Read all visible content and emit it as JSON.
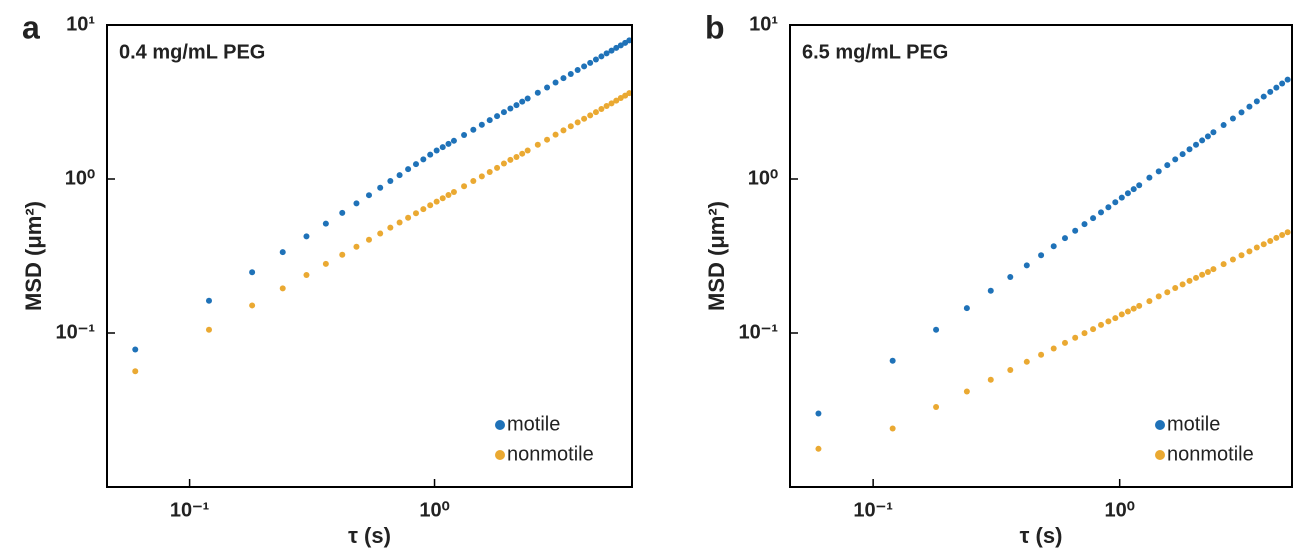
{
  "chart_data": [
    {
      "type": "scatter",
      "panel_label": "a",
      "annotation": "0.4 mg/mL PEG",
      "xlabel": "τ (s)",
      "ylabel": "MSD (μm²)",
      "xscale": "log",
      "yscale": "log",
      "legend": "lower right",
      "xlim": [
        0.046,
        6.4
      ],
      "ylim": [
        0.01,
        10
      ],
      "xticks": [
        {
          "value": 0.1,
          "label": "10⁻¹"
        },
        {
          "value": 1,
          "label": "10⁰"
        }
      ],
      "yticks": [
        {
          "value": 0.1,
          "label": "10⁻¹"
        },
        {
          "value": 1,
          "label": "10⁰"
        },
        {
          "value": 10,
          "label": "10¹"
        }
      ],
      "x": [
        0.06,
        0.12,
        0.18,
        0.24,
        0.3,
        0.36,
        0.42,
        0.48,
        0.54,
        0.6,
        0.66,
        0.72,
        0.78,
        0.84,
        0.9,
        0.96,
        1.02,
        1.08,
        1.14,
        1.2,
        1.32,
        1.44,
        1.56,
        1.68,
        1.8,
        1.92,
        2.04,
        2.16,
        2.28,
        2.4,
        2.64,
        2.88,
        3.12,
        3.36,
        3.6,
        3.84,
        4.08,
        4.32,
        4.56,
        4.8,
        5.04,
        5.28,
        5.52,
        5.76,
        6,
        6.24
      ],
      "series": [
        {
          "name": "motile",
          "color": "#1f72b8",
          "values": [
            0.0782,
            0.162,
            0.248,
            0.335,
            0.424,
            0.513,
            0.603,
            0.694,
            0.785,
            0.877,
            0.97,
            1.06,
            1.16,
            1.25,
            1.34,
            1.44,
            1.53,
            1.61,
            1.69,
            1.77,
            1.93,
            2.09,
            2.25,
            2.41,
            2.56,
            2.72,
            2.87,
            3.02,
            3.18,
            3.33,
            3.63,
            3.93,
            4.23,
            4.52,
            4.81,
            5.1,
            5.39,
            5.68,
            5.97,
            6.25,
            6.54,
            6.82,
            7.1,
            7.38,
            7.66,
            7.94
          ]
        },
        {
          "name": "nonmotile",
          "color": "#eaa932",
          "values": [
            0.0564,
            0.105,
            0.151,
            0.195,
            0.238,
            0.281,
            0.322,
            0.363,
            0.403,
            0.443,
            0.483,
            0.522,
            0.56,
            0.599,
            0.637,
            0.675,
            0.713,
            0.75,
            0.787,
            0.824,
            0.897,
            0.97,
            1.04,
            1.11,
            1.18,
            1.26,
            1.33,
            1.39,
            1.46,
            1.53,
            1.67,
            1.8,
            1.94,
            2.07,
            2.2,
            2.33,
            2.46,
            2.59,
            2.72,
            2.85,
            2.98,
            3.1,
            3.23,
            3.36,
            3.48,
            3.61
          ]
        }
      ]
    },
    {
      "type": "scatter",
      "panel_label": "b",
      "annotation": "6.5 mg/mL PEG",
      "xlabel": "τ (s)",
      "ylabel": "MSD (μm²)",
      "xscale": "log",
      "yscale": "log",
      "legend": "lower right",
      "xlim": [
        0.046,
        5.0
      ],
      "ylim": [
        0.01,
        10
      ],
      "xticks": [
        {
          "value": 0.1,
          "label": "10⁻¹"
        },
        {
          "value": 1,
          "label": "10⁰"
        }
      ],
      "yticks": [
        {
          "value": 0.1,
          "label": "10⁻¹"
        },
        {
          "value": 1,
          "label": "10⁰"
        },
        {
          "value": 10,
          "label": "10¹"
        }
      ],
      "x": [
        0.06,
        0.12,
        0.18,
        0.24,
        0.3,
        0.36,
        0.42,
        0.48,
        0.54,
        0.6,
        0.66,
        0.72,
        0.78,
        0.84,
        0.9,
        0.96,
        1.02,
        1.08,
        1.14,
        1.2,
        1.32,
        1.44,
        1.56,
        1.68,
        1.8,
        1.92,
        2.04,
        2.16,
        2.28,
        2.4,
        2.64,
        2.88,
        3.12,
        3.36,
        3.6,
        3.84,
        4.08,
        4.32,
        4.56,
        4.8
      ],
      "series": [
        {
          "name": "motile",
          "color": "#1f72b8",
          "values": [
            0.03,
            0.066,
            0.105,
            0.145,
            0.188,
            0.231,
            0.275,
            0.32,
            0.366,
            0.413,
            0.461,
            0.509,
            0.557,
            0.607,
            0.656,
            0.706,
            0.757,
            0.808,
            0.859,
            0.911,
            1.02,
            1.12,
            1.23,
            1.34,
            1.45,
            1.56,
            1.67,
            1.78,
            1.89,
            2.01,
            2.24,
            2.47,
            2.71,
            2.95,
            3.19,
            3.43,
            3.68,
            3.92,
            4.17,
            4.42
          ]
        },
        {
          "name": "nonmotile",
          "color": "#eaa932",
          "values": [
            0.0177,
            0.024,
            0.0331,
            0.0417,
            0.0497,
            0.0575,
            0.065,
            0.0722,
            0.0793,
            0.0863,
            0.0931,
            0.0998,
            0.106,
            0.113,
            0.119,
            0.125,
            0.132,
            0.138,
            0.144,
            0.15,
            0.161,
            0.173,
            0.184,
            0.196,
            0.207,
            0.218,
            0.228,
            0.239,
            0.249,
            0.26,
            0.28,
            0.3,
            0.32,
            0.339,
            0.359,
            0.377,
            0.396,
            0.415,
            0.433,
            0.451
          ]
        }
      ]
    }
  ]
}
